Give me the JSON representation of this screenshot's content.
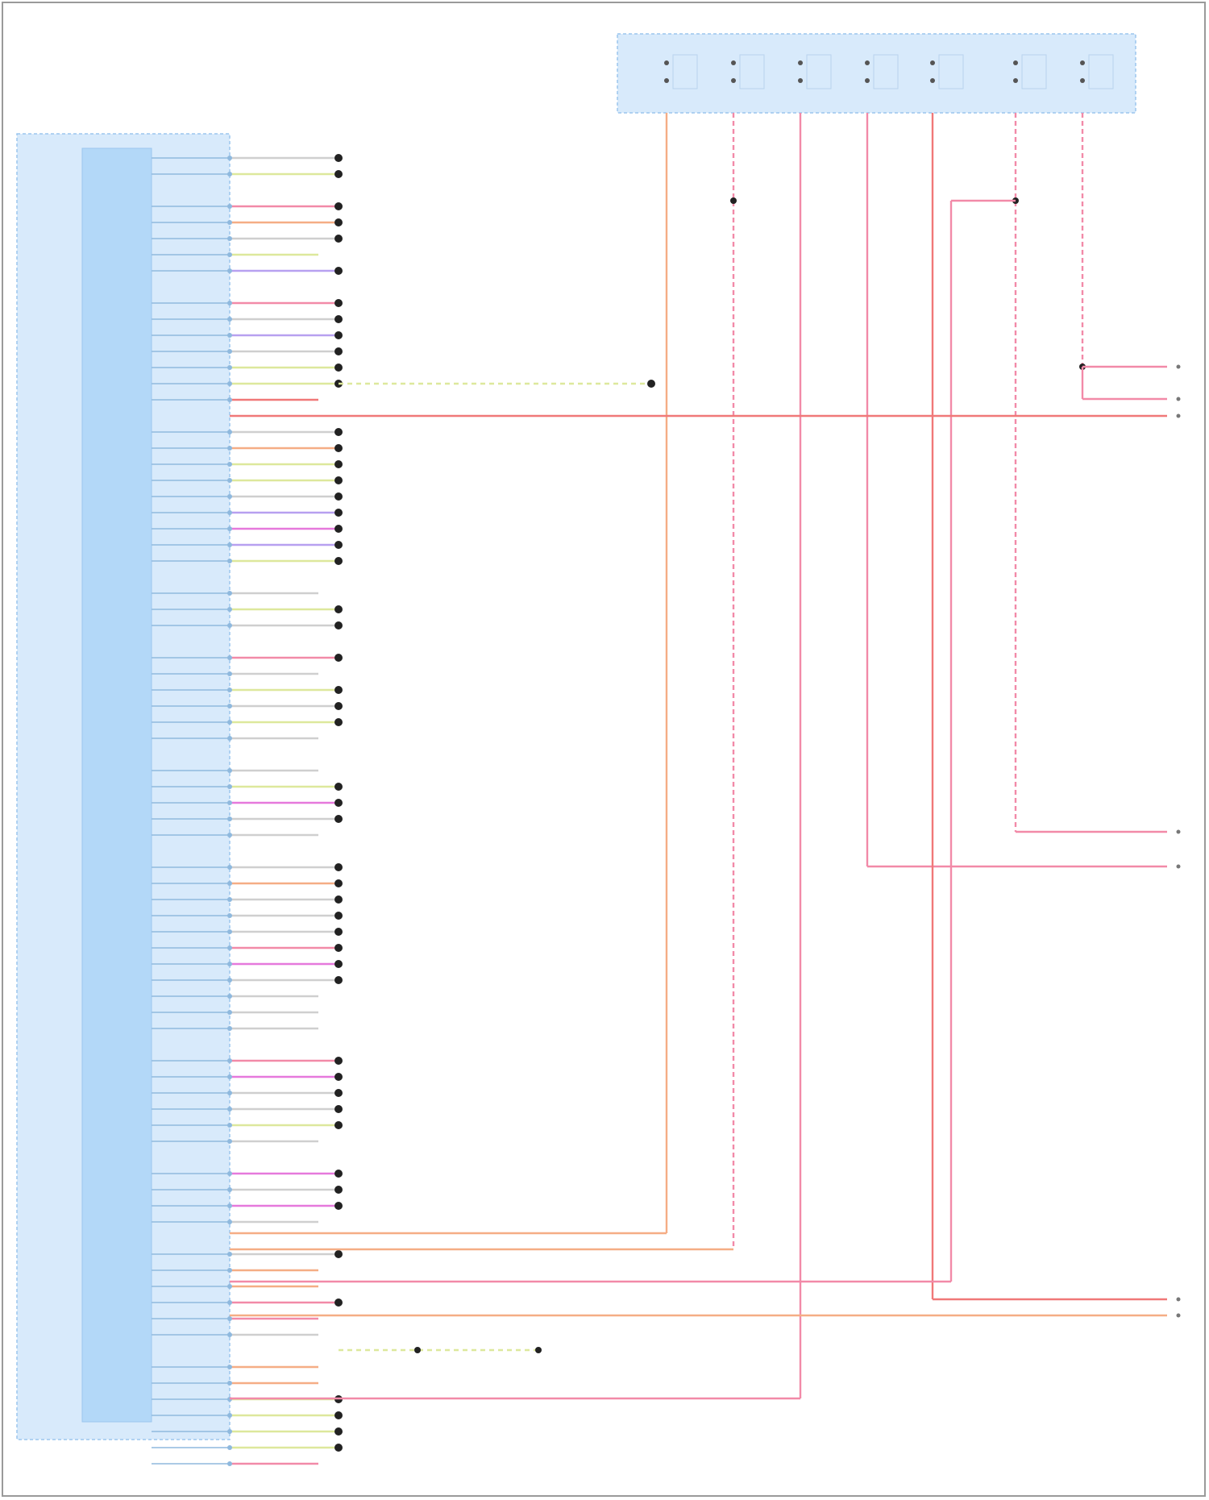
{
  "colors": {
    "module_fill": "#d8eafb",
    "module_inner": "#b3d8f8",
    "module_border": "#9cc6ee",
    "pink": "#f28aa8",
    "orange": "#f5ad85",
    "red": "#f07878",
    "yellowgreen": "#dde89c",
    "purple": "#b7a0f0",
    "magenta": "#e679dc",
    "gray": "#cfcfcf",
    "connector_dot": "#222222"
  },
  "pin_groups": [
    [
      {
        "c": "gray",
        "d": 1
      },
      {
        "c": "yellowgreen",
        "d": 1
      }
    ],
    [
      {
        "c": "pink",
        "d": 1
      },
      {
        "c": "orange",
        "d": 1
      },
      {
        "c": "gray",
        "d": 1
      },
      {
        "c": "yellowgreen",
        "d": 0
      },
      {
        "c": "purple",
        "d": 1
      }
    ],
    [
      {
        "c": "pink",
        "d": 1
      },
      {
        "c": "gray",
        "d": 1
      },
      {
        "c": "purple",
        "d": 1
      },
      {
        "c": "gray",
        "d": 1
      },
      {
        "c": "yellowgreen",
        "d": 1
      },
      {
        "c": "yellowgreen",
        "d": 1
      },
      {
        "c": "red",
        "d": 0
      }
    ],
    [
      {
        "c": "gray",
        "d": 1
      },
      {
        "c": "orange",
        "d": 1
      },
      {
        "c": "yellowgreen",
        "d": 1
      },
      {
        "c": "yellowgreen",
        "d": 1
      },
      {
        "c": "gray",
        "d": 1
      },
      {
        "c": "purple",
        "d": 1
      },
      {
        "c": "magenta",
        "d": 1
      },
      {
        "c": "purple",
        "d": 1
      },
      {
        "c": "yellowgreen",
        "d": 1
      }
    ],
    [
      {
        "c": "gray",
        "d": 0
      },
      {
        "c": "yellowgreen",
        "d": 1
      },
      {
        "c": "gray",
        "d": 1
      }
    ],
    [
      {
        "c": "pink",
        "d": 1
      },
      {
        "c": "gray",
        "d": 0
      },
      {
        "c": "yellowgreen",
        "d": 1
      },
      {
        "c": "gray",
        "d": 1
      },
      {
        "c": "yellowgreen",
        "d": 1
      },
      {
        "c": "gray",
        "d": 0
      }
    ],
    [
      {
        "c": "gray",
        "d": 0
      },
      {
        "c": "yellowgreen",
        "d": 1
      },
      {
        "c": "magenta",
        "d": 1
      },
      {
        "c": "gray",
        "d": 1
      },
      {
        "c": "gray",
        "d": 0
      }
    ],
    [
      {
        "c": "gray",
        "d": 1
      },
      {
        "c": "orange",
        "d": 1
      },
      {
        "c": "gray",
        "d": 1
      },
      {
        "c": "gray",
        "d": 1
      },
      {
        "c": "gray",
        "d": 1
      },
      {
        "c": "pink",
        "d": 1
      },
      {
        "c": "magenta",
        "d": 1
      },
      {
        "c": "gray",
        "d": 1
      },
      {
        "c": "gray",
        "d": 0
      },
      {
        "c": "gray",
        "d": 0
      },
      {
        "c": "gray",
        "d": 0
      }
    ],
    [
      {
        "c": "pink",
        "d": 1
      },
      {
        "c": "magenta",
        "d": 1
      },
      {
        "c": "gray",
        "d": 1
      },
      {
        "c": "gray",
        "d": 1
      },
      {
        "c": "yellowgreen",
        "d": 1
      },
      {
        "c": "gray",
        "d": 0
      }
    ],
    [
      {
        "c": "magenta",
        "d": 1
      },
      {
        "c": "gray",
        "d": 1
      },
      {
        "c": "magenta",
        "d": 1
      },
      {
        "c": "gray",
        "d": 0
      }
    ],
    [
      {
        "c": "gray",
        "d": 1
      },
      {
        "c": "orange",
        "d": 0
      },
      {
        "c": "orange",
        "d": 0
      },
      {
        "c": "pink",
        "d": 1
      },
      {
        "c": "pink",
        "d": 0
      },
      {
        "c": "gray",
        "d": 0
      }
    ],
    [
      {
        "c": "orange",
        "d": 0
      },
      {
        "c": "orange",
        "d": 0
      },
      {
        "c": "yellowgreen",
        "d": 1
      },
      {
        "c": "yellowgreen",
        "d": 1
      },
      {
        "c": "yellowgreen",
        "d": 1
      },
      {
        "c": "yellowgreen",
        "d": 1
      },
      {
        "c": "pink",
        "d": 0
      }
    ]
  ],
  "top_connector_terminals": 7
}
